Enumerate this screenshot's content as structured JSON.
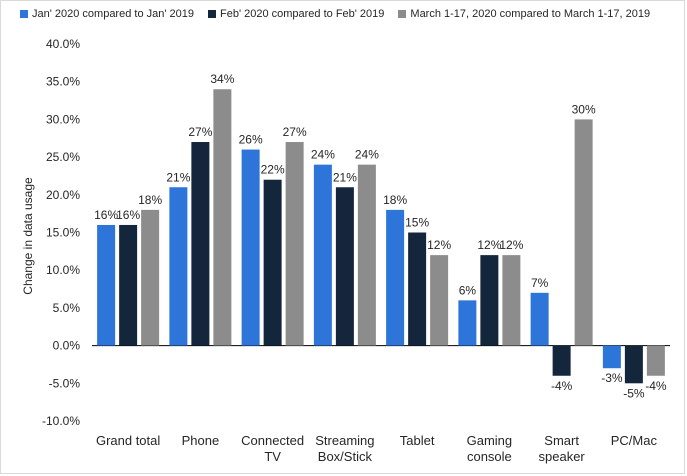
{
  "chart_data": {
    "type": "bar",
    "title": "",
    "xlabel": "",
    "ylabel": "Change in data usage",
    "ylim": [
      -10,
      40
    ],
    "yticks": [
      "40.0%",
      "35.0%",
      "30.0%",
      "25.0%",
      "20.0%",
      "15.0%",
      "10.0%",
      "5.0%",
      "0.0%",
      "-5.0%",
      "-10.0%"
    ],
    "ytick_values": [
      40,
      35,
      30,
      25,
      20,
      15,
      10,
      5,
      0,
      -5,
      -10
    ],
    "categories": [
      [
        "Grand total"
      ],
      [
        "Phone"
      ],
      [
        "Connected",
        "TV"
      ],
      [
        "Streaming",
        "Box/Stick"
      ],
      [
        "Tablet"
      ],
      [
        "Gaming",
        "console"
      ],
      [
        "Smart",
        "speaker"
      ],
      [
        "PC/Mac"
      ]
    ],
    "series": [
      {
        "name": "Jan' 2020 compared to Jan' 2019",
        "color": "#2e75d9",
        "values": [
          16,
          21,
          26,
          24,
          18,
          6,
          7,
          -3
        ],
        "labels": [
          "16%",
          "21%",
          "26%",
          "24%",
          "18%",
          "6%",
          "7%",
          "-3%"
        ]
      },
      {
        "name": "Feb' 2020 compared to Feb' 2019",
        "color": "#14263b",
        "values": [
          16,
          27,
          22,
          21,
          15,
          12,
          -4,
          -5
        ],
        "labels": [
          "16%",
          "27%",
          "22%",
          "21%",
          "15%",
          "12%",
          "-4%",
          "-5%"
        ]
      },
      {
        "name": "March 1-17, 2020 compared to March 1-17, 2019",
        "color": "#8c8c8c",
        "values": [
          18,
          34,
          27,
          24,
          12,
          12,
          30,
          -4
        ],
        "labels": [
          "18%",
          "34%",
          "27%",
          "24%",
          "12%",
          "12%",
          "30%",
          "-4%"
        ]
      }
    ],
    "legend_position": "top",
    "grid": false
  }
}
